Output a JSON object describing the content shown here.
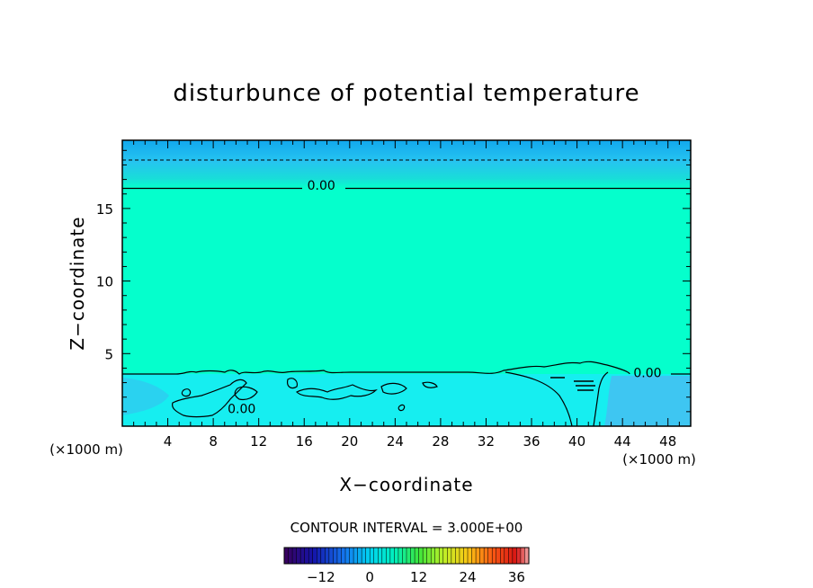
{
  "chart_data": {
    "type": "heatmap",
    "title": "disturbunce of potential temperature",
    "xlabel": "X−coordinate",
    "ylabel": "Z−coordinate",
    "x_unit": "(×1000 m)",
    "y_unit": "(×1000 m)",
    "xlim": [
      0,
      50
    ],
    "ylim": [
      0,
      19.7
    ],
    "x_ticks": [
      4,
      8,
      12,
      16,
      20,
      24,
      28,
      32,
      36,
      40,
      44,
      48
    ],
    "y_ticks": [
      5,
      10,
      15
    ],
    "x_tick_labels": [
      "4",
      "8",
      "12",
      "16",
      "20",
      "24",
      "28",
      "32",
      "36",
      "40",
      "44",
      "48"
    ],
    "y_tick_labels": [
      "5",
      "10",
      "15"
    ],
    "contour_labels": [
      {
        "text": "0.00",
        "x": 17.5,
        "z": 16.6
      },
      {
        "text": "0.00",
        "x": 46.2,
        "z": 3.7
      },
      {
        "text": "0.00",
        "x": 10.5,
        "z": 1.2
      }
    ],
    "contour_interval_label": "CONTOUR INTERVAL = 3.000E+00",
    "colorbar": {
      "min": -21,
      "max": 39,
      "ticks": [
        -12,
        0,
        12,
        24,
        36
      ],
      "tick_labels": [
        "−12",
        "0",
        "12",
        "24",
        "36"
      ]
    },
    "grid": false
  }
}
